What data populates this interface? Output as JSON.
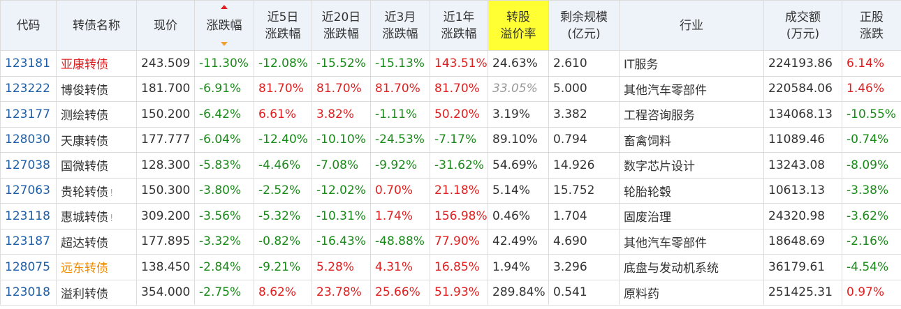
{
  "header": [
    [
      "代码"
    ],
    [
      "转债名称"
    ],
    [
      "现价"
    ],
    [
      "涨跌幅"
    ],
    [
      "近5日",
      "涨跌幅"
    ],
    [
      "近20日",
      "涨跌幅"
    ],
    [
      "近3月",
      "涨跌幅"
    ],
    [
      "近1年",
      "涨跌幅"
    ],
    [
      "转股",
      "溢价率"
    ],
    [
      "剩余规模",
      "(亿元)"
    ],
    [
      "行业"
    ],
    [
      "成交额",
      "(万元)"
    ],
    [
      "正股",
      "涨跌"
    ]
  ],
  "rows": [
    {
      "cells": [
        "123181",
        "亚康转债",
        "243.509",
        "-11.30%",
        "-12.08%",
        "-15.52%",
        "-15.13%",
        "143.51%",
        "24.63%",
        "2.610",
        "IT服务",
        "224193.86",
        "6.14%"
      ],
      "name_color": "#e02020"
    },
    {
      "cells": [
        "123222",
        "博俊转债",
        "181.700",
        "-6.91%",
        "81.70%",
        "81.70%",
        "81.70%",
        "81.70%",
        "33.05%",
        "5.000",
        "其他汽车零部件",
        "220584.06",
        "1.46%"
      ],
      "premium_muted": true
    },
    {
      "cells": [
        "123177",
        "测绘转债",
        "150.200",
        "-6.42%",
        "6.61%",
        "3.82%",
        "-1.11%",
        "50.20%",
        "3.19%",
        "3.382",
        "工程咨询服务",
        "134068.13",
        "-10.55%"
      ]
    },
    {
      "cells": [
        "128030",
        "天康转债",
        "177.777",
        "-6.04%",
        "-12.40%",
        "-10.10%",
        "-24.53%",
        "-7.17%",
        "89.10%",
        "0.794",
        "畜禽饲料",
        "11089.46",
        "-0.74%"
      ]
    },
    {
      "cells": [
        "127038",
        "国微转债",
        "128.300",
        "-5.83%",
        "-4.46%",
        "-7.08%",
        "-9.92%",
        "-31.62%",
        "54.69%",
        "14.926",
        "数字芯片设计",
        "13243.08",
        "-8.09%"
      ]
    },
    {
      "cells": [
        "127063",
        "贵轮转债",
        "150.300",
        "-3.80%",
        "-2.52%",
        "-12.02%",
        "0.70%",
        "21.18%",
        "5.14%",
        "15.752",
        "轮胎轮毂",
        "10613.13",
        "-3.38%"
      ],
      "flag": "!"
    },
    {
      "cells": [
        "123118",
        "惠城转债",
        "309.200",
        "-3.56%",
        "-5.32%",
        "-10.31%",
        "1.74%",
        "156.98%",
        "0.46%",
        "1.704",
        "固废治理",
        "24320.98",
        "-3.62%"
      ],
      "flag": "!"
    },
    {
      "cells": [
        "123187",
        "超达转债",
        "177.895",
        "-3.32%",
        "-0.82%",
        "-16.43%",
        "-48.88%",
        "77.90%",
        "42.49%",
        "4.690",
        "其他汽车零部件",
        "18648.69",
        "-2.16%"
      ]
    },
    {
      "cells": [
        "128075",
        "远东转债",
        "138.450",
        "-2.84%",
        "-9.21%",
        "5.28%",
        "4.31%",
        "16.85%",
        "1.94%",
        "3.296",
        "底盘与发动机系统",
        "36179.61",
        "-4.54%"
      ],
      "name_color": "#f08c00"
    },
    {
      "cells": [
        "123018",
        "溢利转债",
        "354.000",
        "-2.75%",
        "8.62%",
        "23.78%",
        "25.66%",
        "51.93%",
        "289.84%",
        "0.541",
        "原料药",
        "251425.31",
        "0.97%"
      ]
    }
  ]
}
